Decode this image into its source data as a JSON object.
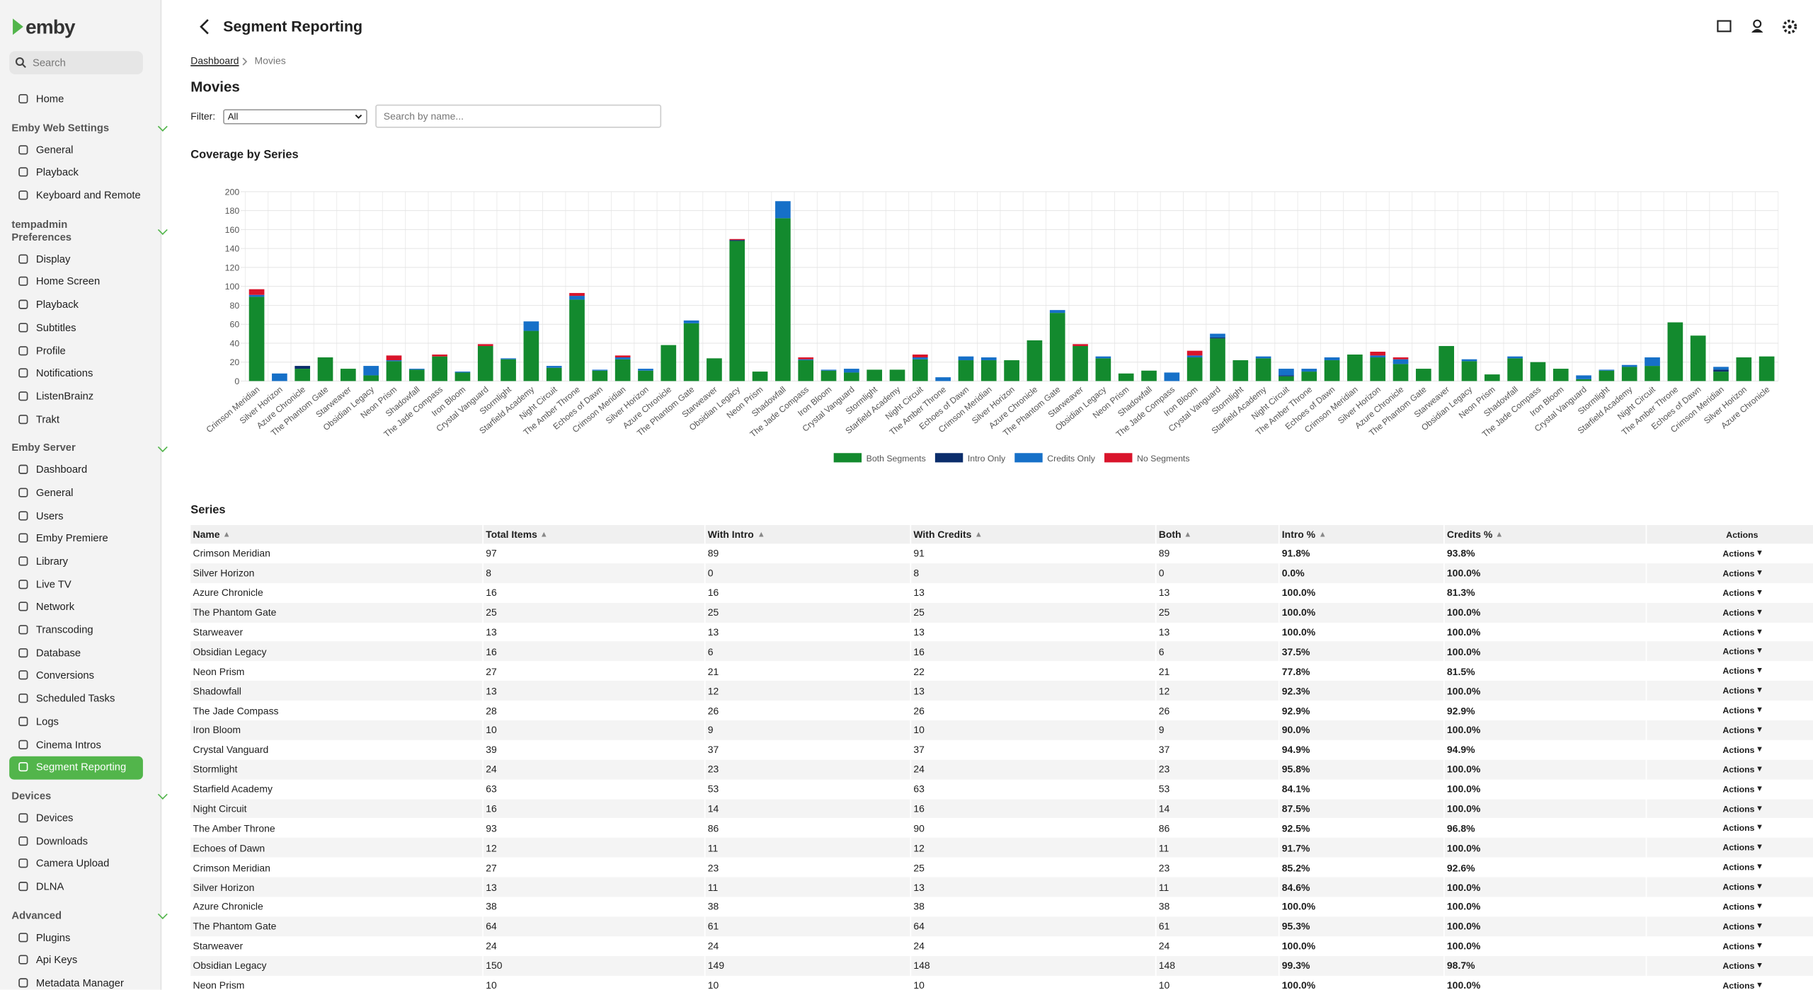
{
  "sidebar": {
    "logo": "emby",
    "search": "Search",
    "home": "Home",
    "sections": [
      {
        "title": "Emby Web Settings",
        "items": [
          "General",
          "Playback",
          "Keyboard and Remote"
        ]
      },
      {
        "title": "tempadmin Preferences",
        "items": [
          "Display",
          "Home Screen",
          "Playback",
          "Subtitles",
          "Profile",
          "Notifications",
          "ListenBrainz",
          "Trakt"
        ]
      },
      {
        "title": "Emby Server",
        "items": [
          "Dashboard",
          "General",
          "Users",
          "Emby Premiere",
          "Library",
          "Live TV",
          "Network",
          "Transcoding",
          "Database",
          "Conversions",
          "Scheduled Tasks",
          "Logs",
          "Cinema Intros",
          "Segment Reporting"
        ]
      },
      {
        "title": "Devices",
        "items": [
          "Devices",
          "Downloads",
          "Camera Upload",
          "DLNA"
        ]
      },
      {
        "title": "Advanced",
        "items": [
          "Plugins",
          "Api Keys",
          "Metadata Manager"
        ]
      }
    ]
  },
  "header": {
    "title": "Segment Reporting"
  },
  "breadcrumb": [
    "Dashboard",
    "Movies"
  ],
  "section_title": "Movies",
  "filter": {
    "label": "Filter:",
    "selected": "All",
    "search_placeholder": "Search by name..."
  },
  "chart_data": {
    "type": "stacked-bar",
    "title": "Coverage by Series",
    "categories": [
      "Crimson Meridian",
      "Silver Horizon",
      "Azure Chronicle",
      "The Phantom Gate",
      "Starweaver",
      "Obsidian Legacy",
      "Neon Prism",
      "Shadowfall",
      "The Jade Compass",
      "Iron Bloom",
      "Crystal Vanguard",
      "Stormlight",
      "Starfield Academy",
      "Night Circuit",
      "The Amber Throne",
      "Echoes of Dawn",
      "Crimson Meridian",
      "Silver Horizon",
      "Azure Chronicle",
      "The Phantom Gate",
      "Starweaver",
      "Obsidian Legacy",
      "Neon Prism",
      "Shadowfall",
      "The Jade Compass",
      "Iron Bloom",
      "Crystal Vanguard",
      "Stormlight",
      "Starfield Academy",
      "Night Circuit",
      "The Amber Throne",
      "Echoes of Dawn",
      "Crimson Meridian",
      "Silver Horizon",
      "Azure Chronicle",
      "The Phantom Gate",
      "Starweaver",
      "Obsidian Legacy",
      "Neon Prism",
      "Shadowfall",
      "The Jade Compass",
      "Iron Bloom",
      "Crystal Vanguard",
      "Stormlight",
      "Starfield Academy",
      "Night Circuit",
      "The Amber Throne",
      "Echoes of Dawn",
      "Crimson Meridian",
      "Silver Horizon",
      "Azure Chronicle",
      "The Phantom Gate",
      "Starweaver",
      "Obsidian Legacy",
      "Neon Prism",
      "Shadowfall",
      "The Jade Compass",
      "Iron Bloom",
      "Crystal Vanguard",
      "Stormlight",
      "Starfield Academy",
      "Night Circuit",
      "The Amber Throne",
      "Echoes of Dawn",
      "Crimson Meridian",
      "Silver Horizon",
      "Azure Chronicle"
    ],
    "series": [
      {
        "name": "Both Segments",
        "color": "#138a2e",
        "values": [
          89,
          0,
          13,
          25,
          13,
          6,
          21,
          12,
          26,
          9,
          37,
          23,
          53,
          14,
          86,
          11,
          23,
          11,
          38,
          61,
          24,
          148,
          10,
          172,
          22,
          11,
          9,
          12,
          12,
          23,
          0,
          22,
          22,
          22,
          43,
          72,
          37,
          24,
          8,
          11,
          0,
          25,
          45,
          22,
          24,
          5,
          10,
          22,
          28,
          25,
          18,
          13,
          37,
          21,
          7,
          24,
          20,
          13,
          2,
          11,
          15,
          16,
          62,
          48,
          10,
          25,
          26
        ]
      },
      {
        "name": "Intro Only",
        "color": "#0b2d6b",
        "values": [
          0,
          0,
          3,
          0,
          0,
          0,
          0,
          0,
          0,
          0,
          0,
          0,
          0,
          0,
          0,
          0,
          0,
          0,
          0,
          0,
          0,
          1,
          0,
          0,
          0,
          0,
          0,
          0,
          0,
          0,
          0,
          0,
          0,
          0,
          0,
          0,
          0,
          0,
          0,
          0,
          0,
          0,
          1,
          0,
          0,
          1,
          0,
          0,
          0,
          0,
          0,
          0,
          0,
          0,
          0,
          0,
          0,
          0,
          0,
          0,
          0,
          0,
          0,
          0,
          2,
          0,
          0
        ]
      },
      {
        "name": "Credits Only",
        "color": "#1670c8",
        "values": [
          2,
          8,
          0,
          0,
          0,
          10,
          1,
          1,
          0,
          1,
          0,
          1,
          10,
          2,
          4,
          1,
          2,
          2,
          0,
          3,
          0,
          0,
          0,
          18,
          1,
          1,
          4,
          0,
          0,
          2,
          4,
          4,
          3,
          0,
          0,
          3,
          0,
          2,
          0,
          0,
          9,
          2,
          4,
          0,
          2,
          7,
          3,
          3,
          0,
          2,
          5,
          0,
          0,
          2,
          0,
          2,
          0,
          0,
          4,
          1,
          2,
          9,
          0,
          0,
          3,
          0,
          0
        ]
      },
      {
        "name": "No Segments",
        "color": "#d9142b",
        "values": [
          6,
          0,
          0,
          0,
          0,
          0,
          5,
          0,
          2,
          0,
          2,
          0,
          0,
          0,
          3,
          0,
          2,
          0,
          0,
          0,
          0,
          1,
          0,
          0,
          2,
          0,
          0,
          0,
          0,
          3,
          0,
          0,
          0,
          0,
          0,
          0,
          2,
          0,
          0,
          0,
          0,
          5,
          0,
          0,
          0,
          0,
          0,
          0,
          0,
          4,
          2,
          0,
          0,
          0,
          0,
          0,
          0,
          0,
          0,
          0,
          0,
          0,
          0,
          0,
          0,
          0,
          0
        ]
      }
    ],
    "ylim": [
      0,
      200
    ],
    "yticks": [
      0,
      20,
      40,
      60,
      80,
      100,
      120,
      140,
      160,
      180,
      200
    ],
    "grid": true,
    "legend": "bottom"
  },
  "table": {
    "title": "Series",
    "action_label": "Actions",
    "columns": [
      "Name",
      "Total Items",
      "With Intro",
      "With Credits",
      "Both",
      "Intro %",
      "Credits %",
      "Actions"
    ],
    "rows": [
      [
        "Crimson Meridian",
        97,
        89,
        91,
        89,
        "91.8%",
        "93.8%"
      ],
      [
        "Silver Horizon",
        8,
        0,
        8,
        0,
        "0.0%",
        "100.0%"
      ],
      [
        "Azure Chronicle",
        16,
        16,
        13,
        13,
        "100.0%",
        "81.3%"
      ],
      [
        "The Phantom Gate",
        25,
        25,
        25,
        25,
        "100.0%",
        "100.0%"
      ],
      [
        "Starweaver",
        13,
        13,
        13,
        13,
        "100.0%",
        "100.0%"
      ],
      [
        "Obsidian Legacy",
        16,
        6,
        16,
        6,
        "37.5%",
        "100.0%"
      ],
      [
        "Neon Prism",
        27,
        21,
        22,
        21,
        "77.8%",
        "81.5%"
      ],
      [
        "Shadowfall",
        13,
        12,
        13,
        12,
        "92.3%",
        "100.0%"
      ],
      [
        "The Jade Compass",
        28,
        26,
        26,
        26,
        "92.9%",
        "92.9%"
      ],
      [
        "Iron Bloom",
        10,
        9,
        10,
        9,
        "90.0%",
        "100.0%"
      ],
      [
        "Crystal Vanguard",
        39,
        37,
        37,
        37,
        "94.9%",
        "94.9%"
      ],
      [
        "Stormlight",
        24,
        23,
        24,
        23,
        "95.8%",
        "100.0%"
      ],
      [
        "Starfield Academy",
        63,
        53,
        63,
        53,
        "84.1%",
        "100.0%"
      ],
      [
        "Night Circuit",
        16,
        14,
        16,
        14,
        "87.5%",
        "100.0%"
      ],
      [
        "The Amber Throne",
        93,
        86,
        90,
        86,
        "92.5%",
        "96.8%"
      ],
      [
        "Echoes of Dawn",
        12,
        11,
        12,
        11,
        "91.7%",
        "100.0%"
      ],
      [
        "Crimson Meridian",
        27,
        23,
        25,
        23,
        "85.2%",
        "92.6%"
      ],
      [
        "Silver Horizon",
        13,
        11,
        13,
        11,
        "84.6%",
        "100.0%"
      ],
      [
        "Azure Chronicle",
        38,
        38,
        38,
        38,
        "100.0%",
        "100.0%"
      ],
      [
        "The Phantom Gate",
        64,
        61,
        64,
        61,
        "95.3%",
        "100.0%"
      ],
      [
        "Starweaver",
        24,
        24,
        24,
        24,
        "100.0%",
        "100.0%"
      ],
      [
        "Obsidian Legacy",
        150,
        149,
        148,
        148,
        "99.3%",
        "98.7%"
      ],
      [
        "Neon Prism",
        10,
        10,
        10,
        10,
        "100.0%",
        "100.0%"
      ]
    ]
  }
}
